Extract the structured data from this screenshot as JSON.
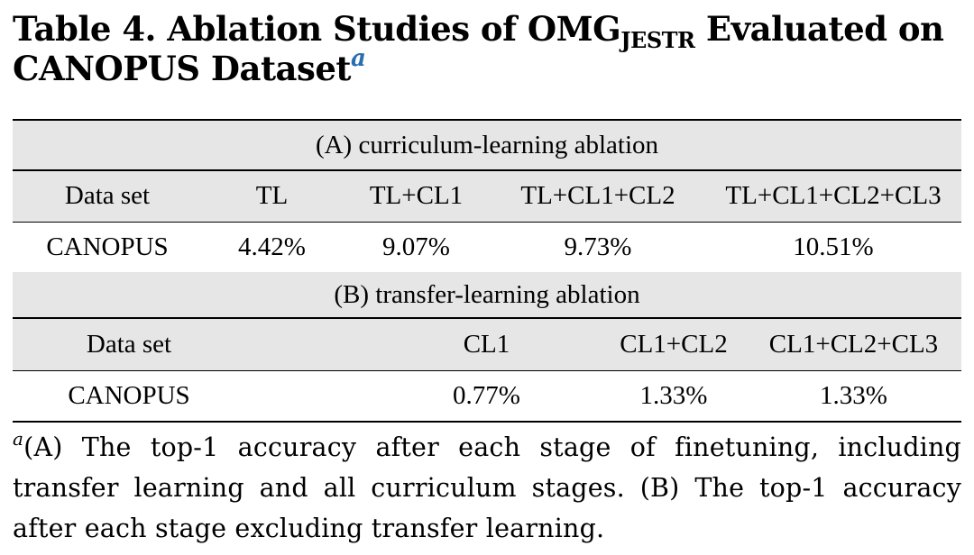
{
  "caption": {
    "prefix": "Table 4. Ablation Studies of OMG",
    "subscript": "JESTR",
    "suffix_line1": " Evaluated on",
    "suffix_line2": "CANOPUS Dataset",
    "footnote_marker": "a"
  },
  "part_a": {
    "title": "(A) curriculum-learning ablation",
    "headers": [
      "Data set",
      "TL",
      "TL+CL1",
      "TL+CL1+CL2",
      "TL+CL1+CL2+CL3"
    ],
    "rows": [
      [
        "CANOPUS",
        "4.42%",
        "9.07%",
        "9.73%",
        "10.51%"
      ]
    ]
  },
  "part_b": {
    "title": "(B) transfer-learning ablation",
    "headers": [
      "Data set",
      "",
      "CL1",
      "CL1+CL2",
      "CL1+CL2+CL3"
    ],
    "rows": [
      [
        "CANOPUS",
        "",
        "0.77%",
        "1.33%",
        "1.33%"
      ]
    ]
  },
  "footnote": {
    "marker": "a",
    "text": "(A) The top-1 accuracy after each stage of finetuning, including transfer learning and all curriculum stages. (B) The top-1 accuracy after each stage excluding transfer learning."
  }
}
